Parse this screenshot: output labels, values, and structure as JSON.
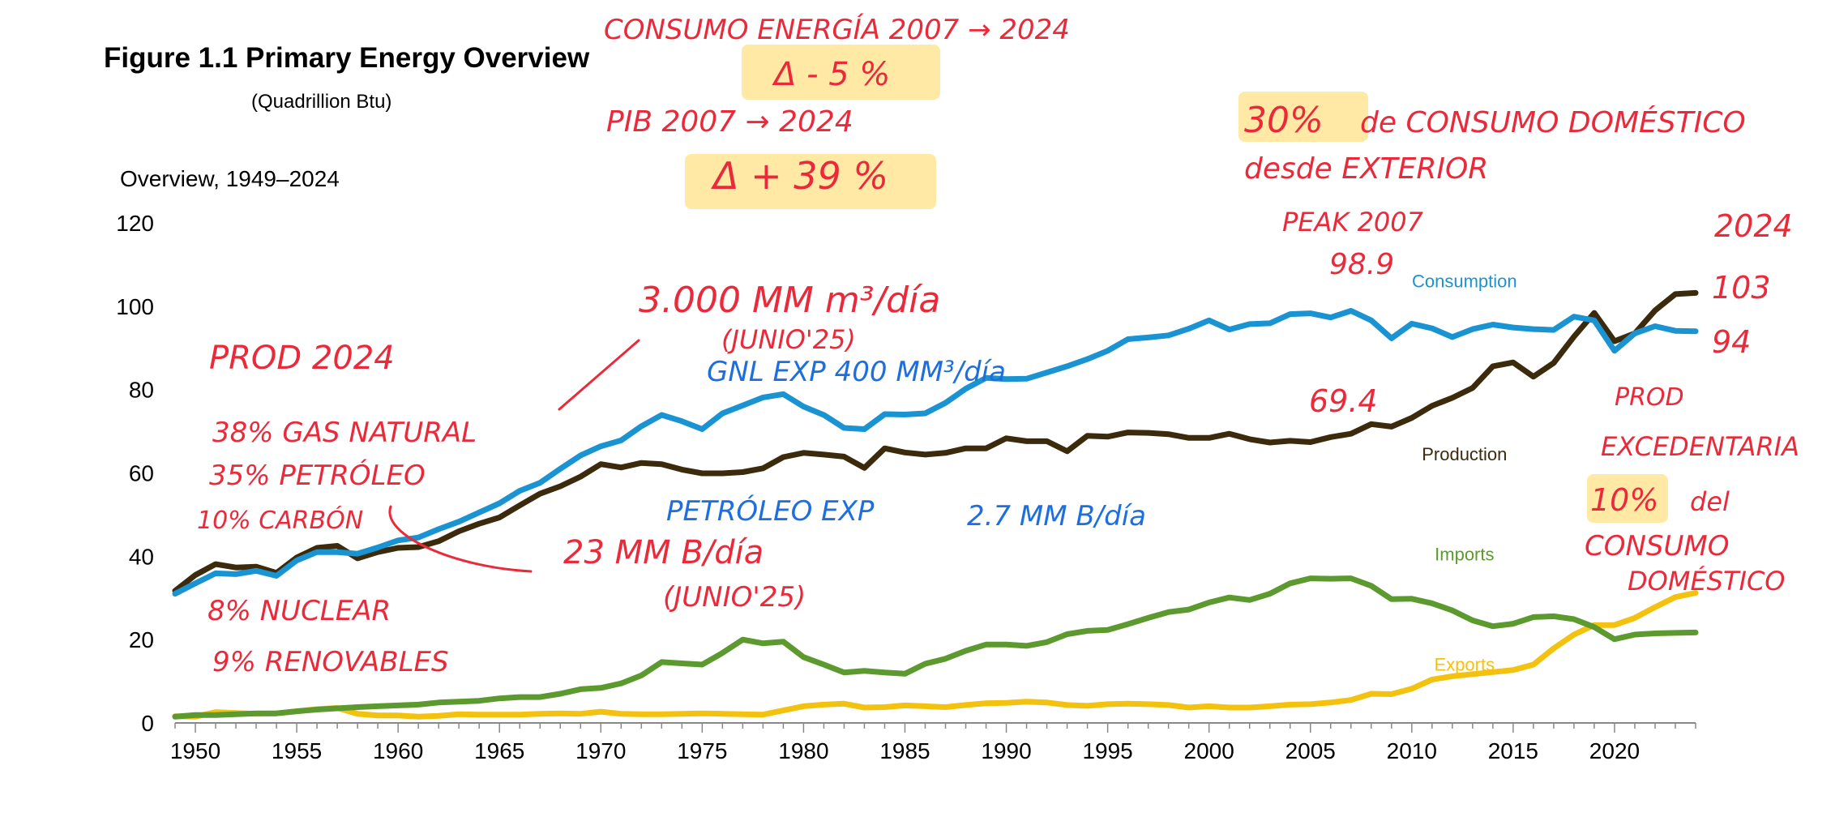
{
  "figure": {
    "title": "Figure 1.1  Primary Energy Overview",
    "subtitle": "(Quadrillion Btu)"
  },
  "chart_data": {
    "type": "line",
    "title": "Overview, 1949–2024",
    "xlim": [
      1949,
      2024
    ],
    "ylim": [
      0,
      120
    ],
    "yticks": [
      0,
      20,
      40,
      60,
      80,
      100,
      120
    ],
    "xticks": [
      1950,
      1955,
      1960,
      1965,
      1970,
      1975,
      1980,
      1985,
      1990,
      1995,
      2000,
      2005,
      2010,
      2015,
      2020
    ],
    "grid": false,
    "colors": {
      "Consumption": "#1a93d2",
      "Production": "#3b2a0c",
      "Imports": "#5c9a2f",
      "Exports": "#f2c20f"
    },
    "series": [
      {
        "name": "Consumption",
        "x": [
          1949,
          1950,
          1951,
          1952,
          1953,
          1954,
          1955,
          1956,
          1957,
          1958,
          1959,
          1960,
          1961,
          1962,
          1963,
          1964,
          1965,
          1966,
          1967,
          1968,
          1969,
          1970,
          1971,
          1972,
          1973,
          1974,
          1975,
          1976,
          1977,
          1978,
          1979,
          1980,
          1981,
          1982,
          1983,
          1984,
          1985,
          1986,
          1987,
          1988,
          1989,
          1990,
          1991,
          1992,
          1993,
          1994,
          1995,
          1996,
          1997,
          1998,
          1999,
          2000,
          2001,
          2002,
          2003,
          2004,
          2005,
          2006,
          2007,
          2008,
          2009,
          2010,
          2011,
          2012,
          2013,
          2014,
          2015,
          2016,
          2017,
          2018,
          2019,
          2020,
          2021,
          2022,
          2023,
          2024
        ],
        "values": [
          31,
          33.5,
          35.9,
          35.7,
          36.5,
          35.3,
          39,
          41,
          41,
          40.6,
          42.1,
          43.8,
          44.5,
          46.5,
          48.3,
          50.5,
          52.7,
          55.7,
          57.6,
          61,
          64.2,
          66.4,
          67.8,
          71.2,
          73.9,
          72.4,
          70.5,
          74.3,
          76.2,
          78.1,
          78.9,
          75.9,
          73.9,
          70.8,
          70.5,
          74.1,
          74,
          74.3,
          76.8,
          80.2,
          82.8,
          82.5,
          82.6,
          84.1,
          85.6,
          87.3,
          89.3,
          92.1,
          92.5,
          93,
          94.6,
          96.6,
          94.4,
          95.7,
          95.9,
          98.1,
          98.3,
          97.3,
          98.9,
          96.6,
          92.3,
          95.8,
          94.7,
          92.6,
          94.5,
          95.6,
          94.9,
          94.5,
          94.3,
          97.5,
          96.6,
          89.3,
          93.5,
          95.2,
          94.1,
          94
        ]
      },
      {
        "name": "Production",
        "x": [
          1949,
          1950,
          1951,
          1952,
          1953,
          1954,
          1955,
          1956,
          1957,
          1958,
          1959,
          1960,
          1961,
          1962,
          1963,
          1964,
          1965,
          1966,
          1967,
          1968,
          1969,
          1970,
          1971,
          1972,
          1973,
          1974,
          1975,
          1976,
          1977,
          1978,
          1979,
          1980,
          1981,
          1982,
          1983,
          1984,
          1985,
          1986,
          1987,
          1988,
          1989,
          1990,
          1991,
          1992,
          1993,
          1994,
          1995,
          1996,
          1997,
          1998,
          1999,
          2000,
          2001,
          2002,
          2003,
          2004,
          2005,
          2006,
          2007,
          2008,
          2009,
          2010,
          2011,
          2012,
          2013,
          2014,
          2015,
          2016,
          2017,
          2018,
          2019,
          2020,
          2021,
          2022,
          2023,
          2024
        ],
        "values": [
          31.7,
          35.5,
          38.1,
          37.3,
          37.5,
          36,
          39.7,
          42,
          42.5,
          39.5,
          41,
          42,
          42.2,
          43.6,
          46,
          47.8,
          49.3,
          52.2,
          55,
          56.8,
          59.1,
          62.1,
          61.3,
          62.4,
          62.1,
          60.8,
          59.9,
          59.9,
          60.2,
          61.1,
          63.8,
          64.8,
          64.4,
          63.9,
          61.2,
          65.9,
          64.9,
          64.4,
          64.8,
          65.9,
          65.9,
          68.3,
          67.6,
          67.6,
          65.2,
          68.9,
          68.7,
          69.7,
          69.6,
          69.3,
          68.4,
          68.4,
          69.4,
          68.1,
          67.3,
          67.7,
          67.4,
          68.6,
          69.4,
          71.7,
          71.1,
          73.2,
          76.1,
          78,
          80.4,
          85.6,
          86.5,
          83.1,
          86.4,
          92.7,
          98.4,
          91.6,
          93.5,
          99,
          102.9,
          103.2
        ]
      },
      {
        "name": "Imports",
        "x": [
          1949,
          1950,
          1951,
          1952,
          1953,
          1954,
          1955,
          1956,
          1957,
          1958,
          1959,
          1960,
          1961,
          1962,
          1963,
          1964,
          1965,
          1966,
          1967,
          1968,
          1969,
          1970,
          1971,
          1972,
          1973,
          1974,
          1975,
          1976,
          1977,
          1978,
          1979,
          1980,
          1981,
          1982,
          1983,
          1984,
          1985,
          1986,
          1987,
          1988,
          1989,
          1990,
          1991,
          1992,
          1993,
          1994,
          1995,
          1996,
          1997,
          1998,
          1999,
          2000,
          2001,
          2002,
          2003,
          2004,
          2005,
          2006,
          2007,
          2008,
          2009,
          2010,
          2011,
          2012,
          2013,
          2014,
          2015,
          2016,
          2017,
          2018,
          2019,
          2020,
          2021,
          2022,
          2023,
          2024
        ],
        "values": [
          1.5,
          1.9,
          1.9,
          2.1,
          2.3,
          2.3,
          2.8,
          3.2,
          3.5,
          3.8,
          4,
          4.2,
          4.4,
          4.9,
          5.1,
          5.3,
          5.9,
          6.2,
          6.2,
          7,
          8.1,
          8.4,
          9.5,
          11.4,
          14.6,
          14.3,
          14,
          16.8,
          20,
          19.1,
          19.5,
          15.8,
          14,
          12.1,
          12.5,
          12.1,
          11.8,
          14.2,
          15.4,
          17.3,
          18.8,
          18.8,
          18.5,
          19.4,
          21.3,
          22.1,
          22.3,
          23.7,
          25.2,
          26.6,
          27.2,
          28.9,
          30.1,
          29.5,
          31,
          33.5,
          34.7,
          34.6,
          34.7,
          32.9,
          29.7,
          29.8,
          28.7,
          27,
          24.6,
          23.2,
          23.8,
          25.4,
          25.6,
          24.9,
          23,
          20.1,
          21.2,
          21.5,
          21.6,
          21.7
        ]
      },
      {
        "name": "Exports",
        "x": [
          1949,
          1950,
          1951,
          1952,
          1953,
          1954,
          1955,
          1956,
          1957,
          1958,
          1959,
          1960,
          1961,
          1962,
          1963,
          1964,
          1965,
          1966,
          1967,
          1968,
          1969,
          1970,
          1971,
          1972,
          1973,
          1974,
          1975,
          1976,
          1977,
          1978,
          1979,
          1980,
          1981,
          1982,
          1983,
          1984,
          1985,
          1986,
          1987,
          1988,
          1989,
          1990,
          1991,
          1992,
          1993,
          1994,
          1995,
          1996,
          1997,
          1998,
          1999,
          2000,
          2001,
          2002,
          2003,
          2004,
          2005,
          2006,
          2007,
          2008,
          2009,
          2010,
          2011,
          2012,
          2013,
          2014,
          2015,
          2016,
          2017,
          2018,
          2019,
          2020,
          2021,
          2022,
          2023,
          2024
        ],
        "values": [
          1.6,
          1.5,
          2.6,
          2.4,
          2.2,
          2.3,
          2.8,
          3.3,
          3.6,
          2.2,
          1.8,
          1.8,
          1.5,
          1.7,
          2.1,
          2,
          2,
          2,
          2.2,
          2.3,
          2.2,
          2.7,
          2.2,
          2.1,
          2.1,
          2.2,
          2.3,
          2.2,
          2.1,
          2,
          3,
          4,
          4.4,
          4.6,
          3.7,
          3.8,
          4.2,
          4,
          3.8,
          4.3,
          4.7,
          4.8,
          5.1,
          4.9,
          4.3,
          4.1,
          4.5,
          4.6,
          4.5,
          4.3,
          3.7,
          4,
          3.7,
          3.7,
          4,
          4.4,
          4.5,
          4.9,
          5.5,
          7,
          6.9,
          8.2,
          10.4,
          11.2,
          11.7,
          12.2,
          12.7,
          14,
          17.9,
          21.2,
          23.5,
          23.5,
          25.2,
          27.8,
          30.2,
          31.2
        ]
      }
    ],
    "series_labels": [
      {
        "name": "Consumption",
        "x": 2011,
        "y": 104.5
      },
      {
        "name": "Production",
        "x": 2011,
        "y": 63
      },
      {
        "name": "Imports",
        "x": 2011,
        "y": 39
      },
      {
        "name": "Exports",
        "x": 2011,
        "y": 12.5
      }
    ]
  },
  "annotations": [
    {
      "text": "CONSUMO ENERGÍA  2007 → 2024",
      "color": "red"
    },
    {
      "text": "Δ - 5 %",
      "color": "red",
      "highlight": true
    },
    {
      "text": "PIB      2007 → 2024",
      "color": "red"
    },
    {
      "text": "Δ + 39 %",
      "color": "red",
      "highlight": true
    },
    {
      "text": "30%",
      "color": "red",
      "highlight": true
    },
    {
      "text": "de CONSUMO DOMÉSTICO",
      "color": "red"
    },
    {
      "text": "desde EXTERIOR",
      "color": "red"
    },
    {
      "text": "PEAK 2007",
      "color": "red"
    },
    {
      "text": "98.9",
      "color": "red"
    },
    {
      "text": "2024",
      "color": "red"
    },
    {
      "text": "103",
      "color": "red"
    },
    {
      "text": "94",
      "color": "red"
    },
    {
      "text": "3.000 MM m³/día",
      "color": "red"
    },
    {
      "text": "(JUNIO'25)",
      "color": "red"
    },
    {
      "text": "GNL EXP 400 MM³/día",
      "color": "blue"
    },
    {
      "text": "PROD 2024",
      "color": "red"
    },
    {
      "text": "38% GAS NATURAL",
      "color": "red"
    },
    {
      "text": "35% PETRÓLEO",
      "color": "red"
    },
    {
      "text": "10% CARBÓN",
      "color": "red"
    },
    {
      "text": "8% NUCLEAR",
      "color": "red"
    },
    {
      "text": "9% RENOVABLES",
      "color": "red"
    },
    {
      "text": "69.4",
      "color": "red"
    },
    {
      "text": "PROD",
      "color": "red"
    },
    {
      "text": "EXCEDENTARIA",
      "color": "red"
    },
    {
      "text": "10%",
      "color": "red",
      "highlight": true
    },
    {
      "text": "del",
      "color": "red"
    },
    {
      "text": "CONSUMO",
      "color": "red"
    },
    {
      "text": "DOMÉSTICO",
      "color": "red"
    },
    {
      "text": "PETRÓLEO EXP",
      "color": "blue"
    },
    {
      "text": "2.7 MM B/día",
      "color": "blue"
    },
    {
      "text": "23 MM B/día",
      "color": "red"
    },
    {
      "text": "(JUNIO'25)",
      "color": "red"
    }
  ]
}
